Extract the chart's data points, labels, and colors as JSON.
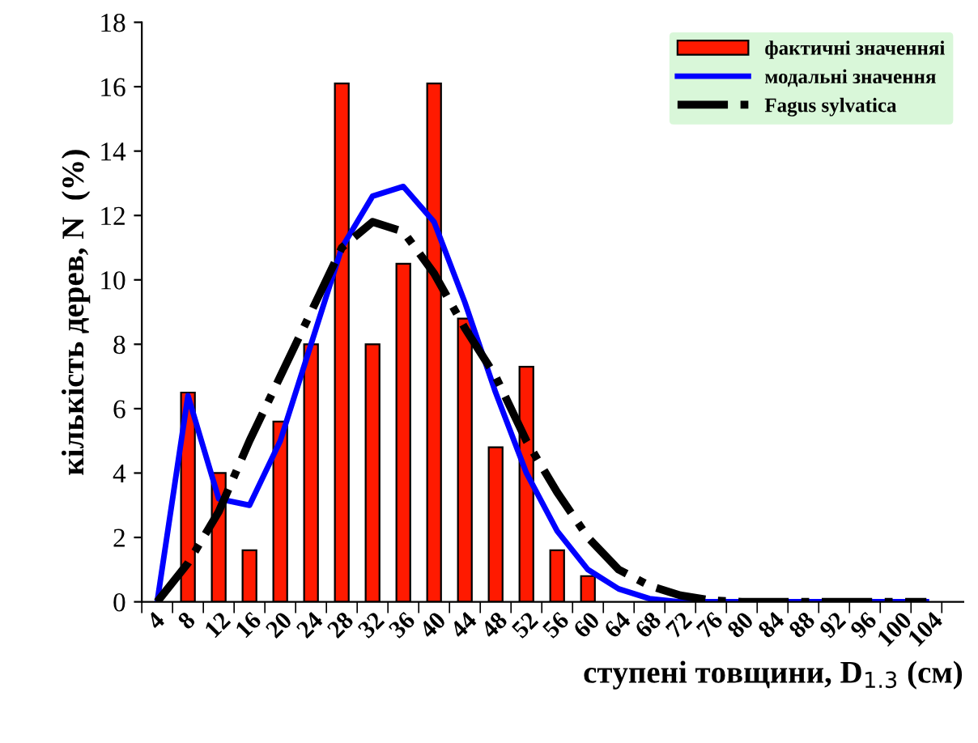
{
  "chart_data": {
    "type": "bar",
    "xlabel": "ступені товщини, D$_{1.3}$ (см)",
    "ylabel": "кількість дерев, N  (%)",
    "categories": [
      "4",
      "8",
      "12",
      "16",
      "20",
      "24",
      "28",
      "32",
      "36",
      "40",
      "44",
      "48",
      "52",
      "56",
      "60",
      "64",
      "68",
      "72",
      "76",
      "80",
      "84",
      "88",
      "92",
      "96",
      "100",
      "104"
    ],
    "series": [
      {
        "name": "фактичні значенняі",
        "color": "#ff1a00",
        "values": [
          null,
          6.5,
          4.0,
          1.6,
          5.6,
          8.0,
          16.1,
          8.0,
          10.5,
          16.1,
          8.8,
          4.8,
          7.3,
          1.6,
          0.8,
          null,
          null,
          null,
          null,
          null,
          null,
          null,
          null,
          null,
          null,
          null
        ]
      },
      {
        "name": "модальні значення",
        "type": "line",
        "color": "#0000ff",
        "line_style": "solid",
        "values": [
          0,
          6.4,
          3.2,
          3.0,
          5.0,
          8.0,
          11.0,
          12.6,
          12.9,
          11.8,
          9.3,
          6.5,
          4.0,
          2.2,
          1.0,
          0.4,
          0.1,
          0,
          0,
          0,
          0,
          0,
          0,
          0,
          0,
          0
        ]
      },
      {
        "name": "Fagus sylvatica",
        "type": "line",
        "color": "#000000",
        "line_style": "dashdot",
        "values": [
          0,
          1.2,
          2.8,
          5.0,
          7.0,
          9.0,
          11.0,
          11.8,
          11.5,
          10.2,
          8.5,
          7.0,
          5.0,
          3.4,
          2.0,
          1.0,
          0.5,
          0.2,
          0.05,
          0,
          0,
          0,
          0,
          0,
          0,
          0
        ]
      }
    ],
    "ylim": [
      0,
      18
    ],
    "yticks": [
      0,
      2,
      4,
      6,
      8,
      10,
      12,
      14,
      16,
      18
    ],
    "grid": false,
    "legend": "top right",
    "marker": "none"
  }
}
